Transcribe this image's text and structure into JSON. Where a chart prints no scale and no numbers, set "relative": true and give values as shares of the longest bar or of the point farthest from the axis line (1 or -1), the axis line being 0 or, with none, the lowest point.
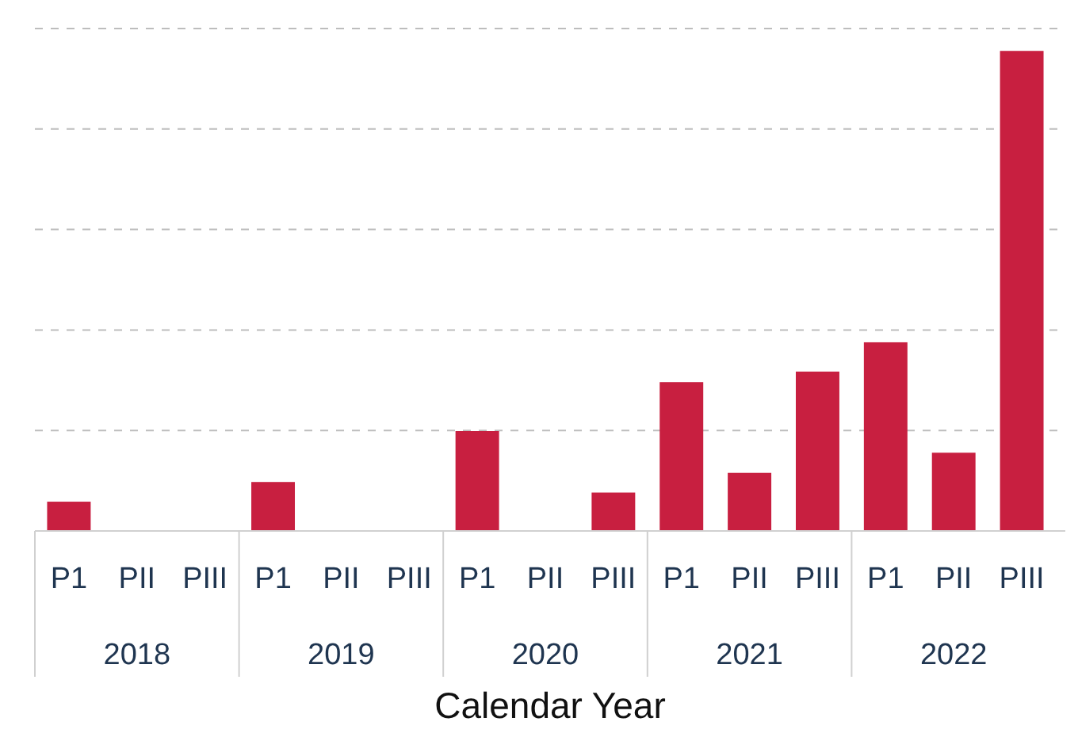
{
  "chart_data": {
    "type": "bar",
    "relative": true,
    "xlabel": "Calendar Year",
    "categories": [
      "P1",
      "PII",
      "PIII",
      "P1",
      "PII",
      "PIII",
      "P1",
      "PII",
      "PIII",
      "P1",
      "PII",
      "PIII",
      "P1",
      "PII",
      "PIII"
    ],
    "values": [
      0.061,
      null,
      null,
      0.102,
      null,
      null,
      0.208,
      null,
      0.08,
      0.31,
      0.121,
      0.332,
      0.393,
      0.163,
      1
    ],
    "color": "#c81f40",
    "grid": "y",
    "annotations": [
      "2018",
      "2019",
      "2020",
      "2021",
      "2022"
    ]
  }
}
